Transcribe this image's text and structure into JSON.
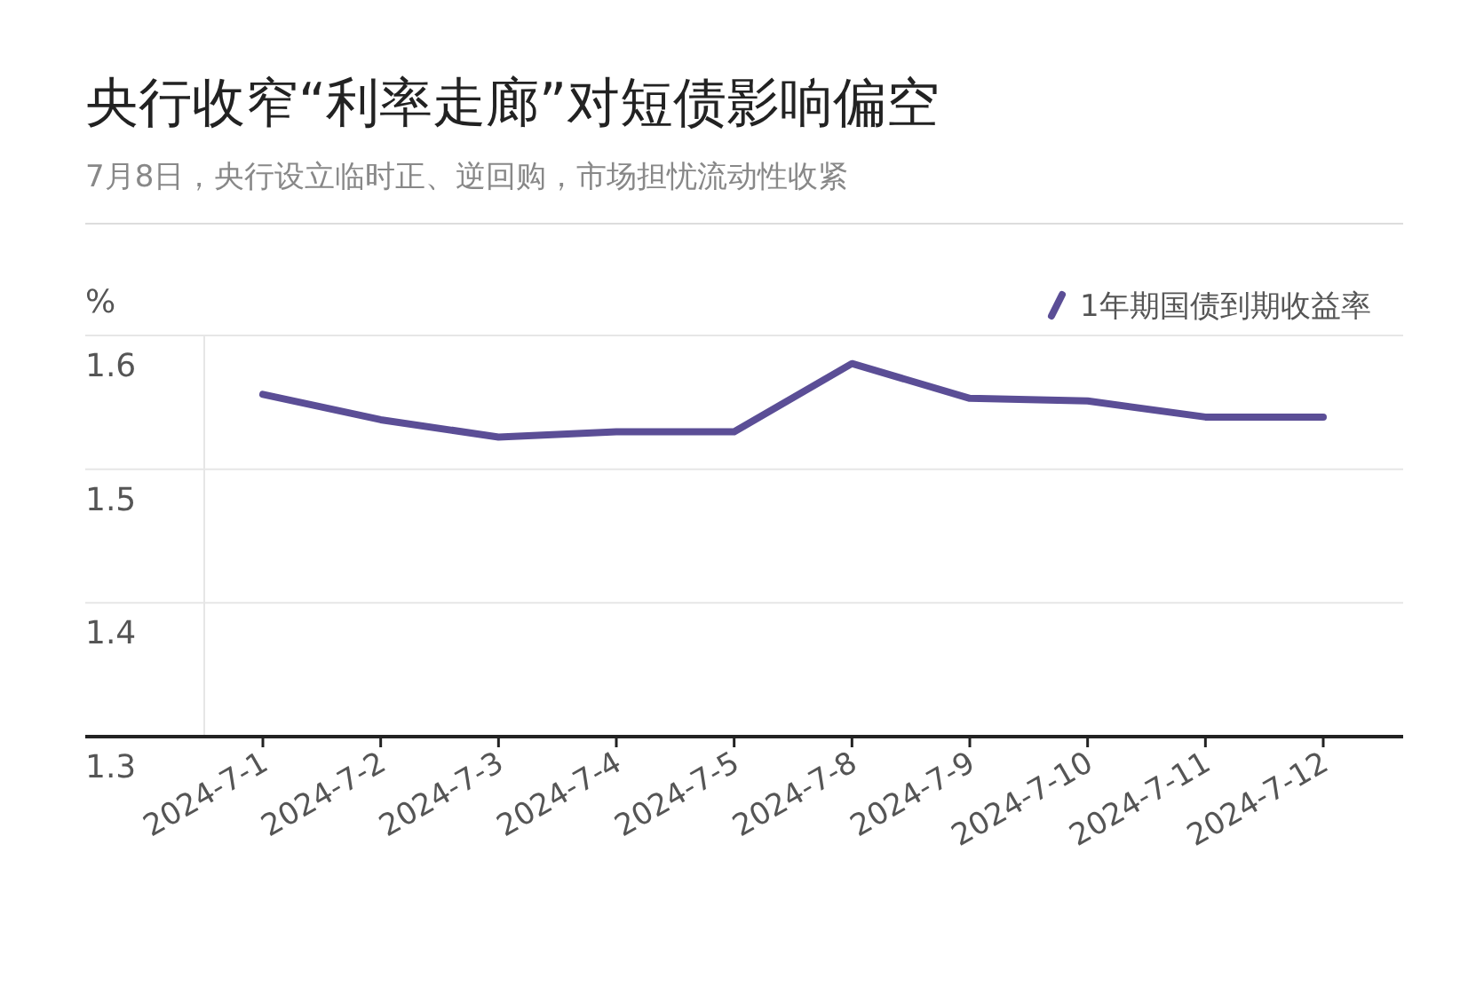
{
  "chart_data": {
    "type": "line",
    "title": "央行收窄“利率走廊”对短债影响偏空",
    "subtitle": "7月8日，央行设立临时正、逆回购，市场担忧流动性收紧",
    "ylabel": "%",
    "categories": [
      "2024-7-1",
      "2024-7-2",
      "2024-7-3",
      "2024-7-4",
      "2024-7-5",
      "2024-7-8",
      "2024-7-9",
      "2024-7-10",
      "2024-7-11",
      "2024-7-12"
    ],
    "series": [
      {
        "name": "1年期国债到期收益率",
        "color": "#5b4e96",
        "values": [
          1.556,
          1.537,
          1.524,
          1.528,
          1.528,
          1.579,
          1.553,
          1.551,
          1.539,
          1.539
        ]
      }
    ],
    "ylim": [
      1.3,
      1.6
    ],
    "yticks": [
      1.3,
      1.4,
      1.5,
      1.6
    ],
    "grid": "y",
    "legend": "top right",
    "marker": "none",
    "line_style": "solid"
  }
}
